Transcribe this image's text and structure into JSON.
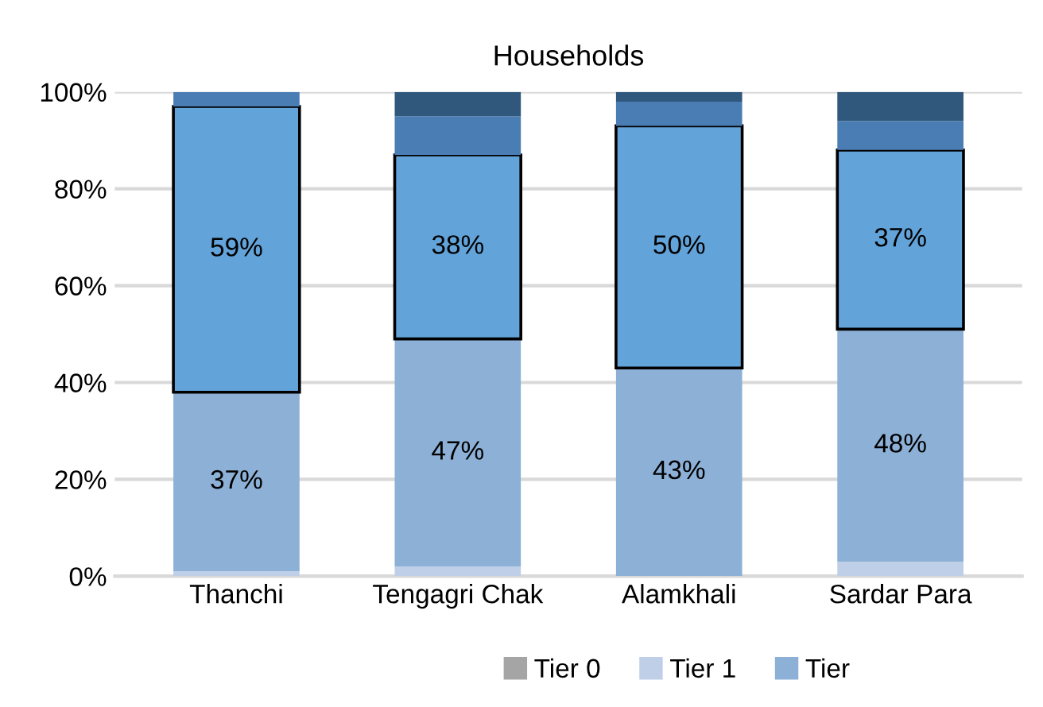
{
  "chart_data": {
    "type": "bar",
    "stacked": true,
    "title": "Households",
    "categories": [
      "Thanchi",
      "Tengagri Chak",
      "Alamkhali",
      "Sardar Para"
    ],
    "series": [
      {
        "name": "Tier 0",
        "color": "#a5a5a5",
        "values": [
          0,
          0,
          0,
          0
        ]
      },
      {
        "name": "Tier 1",
        "color": "#c0cfe8",
        "values": [
          1,
          2,
          0,
          3
        ]
      },
      {
        "name": "Tier",
        "color": "#8cb0d6",
        "values": [
          37,
          47,
          43,
          48
        ],
        "value_labels": [
          "37%",
          "47%",
          "43%",
          "48%"
        ]
      },
      {
        "color": "#62a3d9",
        "values": [
          59,
          38,
          50,
          37
        ],
        "value_labels": [
          "59%",
          "38%",
          "50%",
          "37%"
        ]
      },
      {
        "color": "#4a7db3",
        "values": [
          3,
          8,
          5,
          6
        ]
      },
      {
        "color": "#30587c",
        "values": [
          0,
          5,
          2,
          6
        ]
      }
    ],
    "ylim": [
      0,
      100
    ],
    "yticks": [
      {
        "value": 0,
        "label": "0%"
      },
      {
        "value": 20,
        "label": "20%"
      },
      {
        "value": 40,
        "label": "40%"
      },
      {
        "value": 60,
        "label": "60%"
      },
      {
        "value": 80,
        "label": "80%"
      },
      {
        "value": 100,
        "label": "100%"
      }
    ],
    "grid": "y",
    "legend": "bottom"
  }
}
